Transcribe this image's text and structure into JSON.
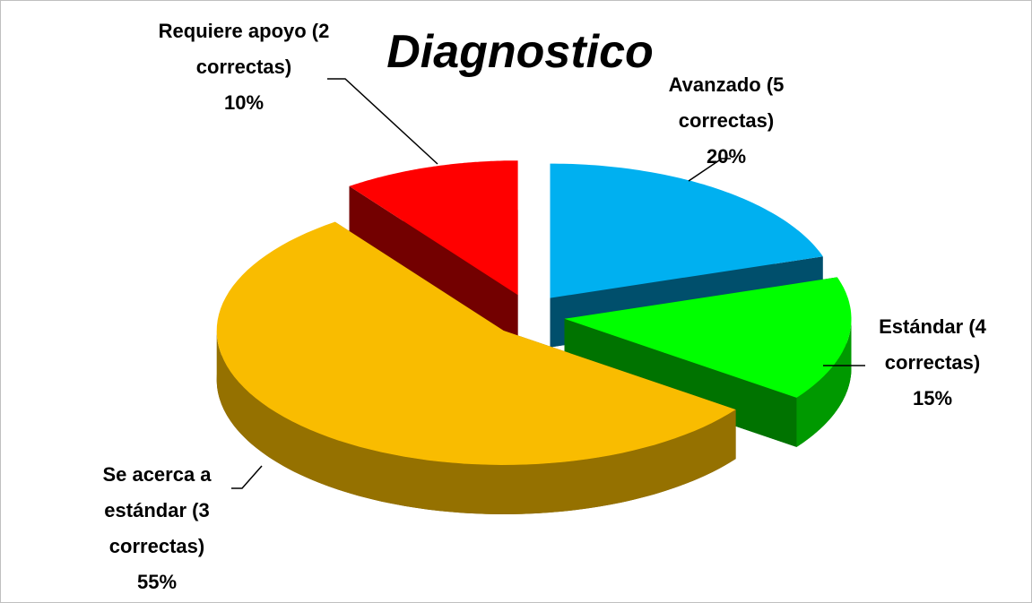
{
  "chart_data": {
    "type": "pie",
    "title": "Diagnostico",
    "categories": [
      "Avanzado (5 correctas)",
      "Estándar (4 correctas)",
      "Se acerca a estándar (3 correctas)",
      "Requiere apoyo (2 correctas)"
    ],
    "values": [
      20,
      15,
      55,
      10
    ],
    "value_labels": [
      "20%",
      "15%",
      "55%",
      "10%"
    ],
    "colors": [
      "#00b0f0",
      "#00ff00",
      "#f9bc00",
      "#ff0000"
    ]
  }
}
